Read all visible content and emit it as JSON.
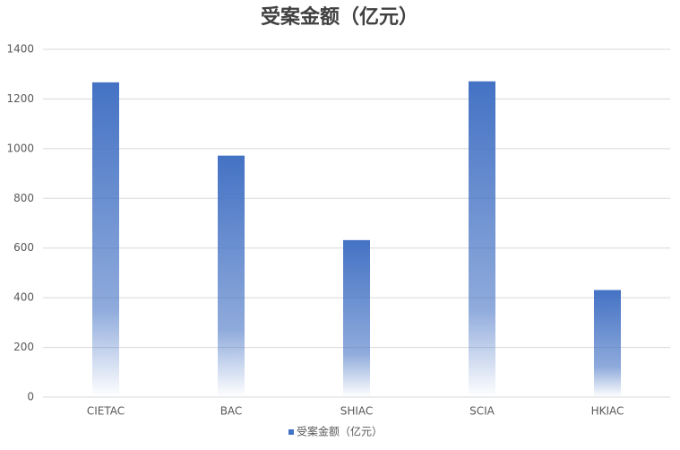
{
  "chart_data": {
    "type": "bar",
    "title": "受案金额（亿元）",
    "categories": [
      "CIETAC",
      "BAC",
      "SHIAC",
      "SCIA",
      "HKIAC"
    ],
    "series": [
      {
        "name": "受案金额（亿元）",
        "color": "#4472c4",
        "values": [
          1267,
          972,
          632,
          1271,
          431
        ]
      }
    ],
    "ylim": [
      0,
      1400
    ],
    "yticks": [
      0,
      200,
      400,
      600,
      800,
      1000,
      1200,
      1400
    ],
    "grid": true,
    "legend": "bottom"
  }
}
